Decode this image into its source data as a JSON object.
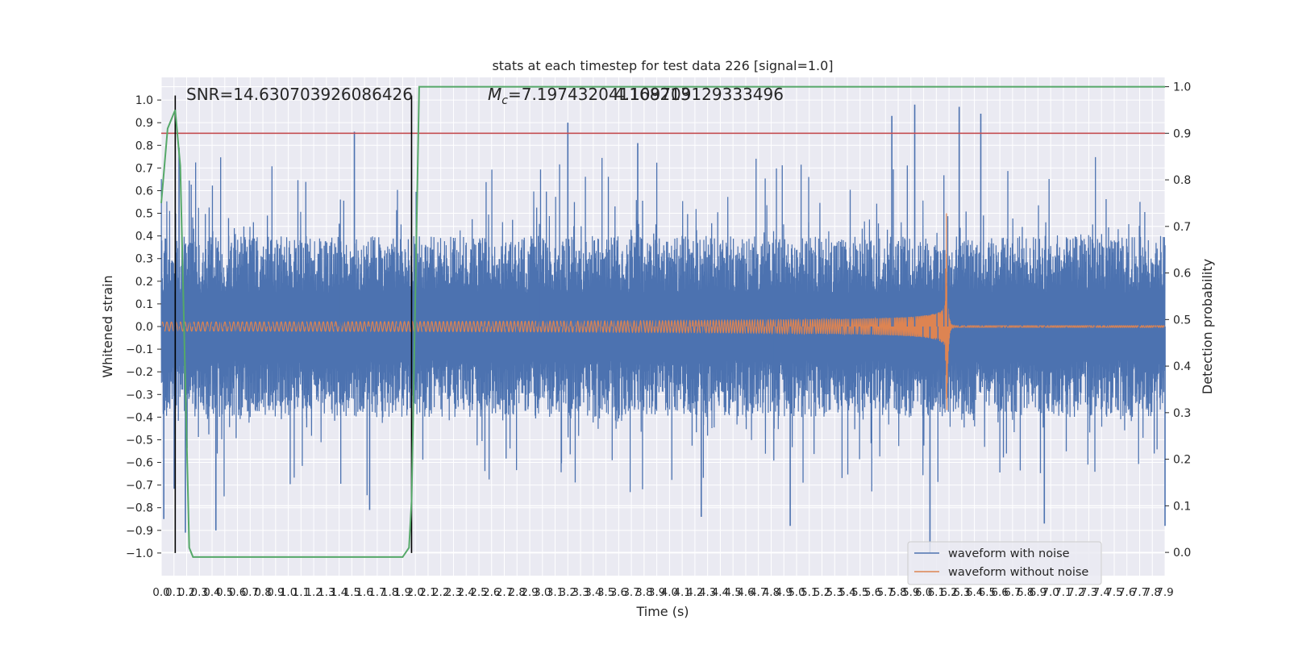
{
  "chart_data": {
    "type": "line",
    "title": "stats at each timestep for test data 226 [signal=1.0]",
    "xlabel": "Time (s)",
    "ylabel": "Whitened strain",
    "ylabel_right": "Detection probability",
    "xlim": [
      0.0,
      7.9
    ],
    "ylim": [
      -1.1,
      1.1
    ],
    "ylim_right": [
      -0.05,
      1.02
    ],
    "x_tick_step": 0.1,
    "y_ticks": [
      -1.0,
      -0.9,
      -0.8,
      -0.7,
      -0.6,
      -0.5,
      -0.4,
      -0.3,
      -0.2,
      -0.1,
      0.0,
      0.1,
      0.2,
      0.3,
      0.4,
      0.5,
      0.6,
      0.7,
      0.8,
      0.9,
      1.0
    ],
    "y_ticks_right": [
      0.0,
      0.1,
      0.2,
      0.3,
      0.4,
      0.5,
      0.6,
      0.7,
      0.8,
      0.9,
      1.0
    ],
    "grid": true,
    "legend_position": "lower-right",
    "annotations": {
      "snr": "SNR=14.630703926086426",
      "mc_prefix": "M",
      "mc_sub": "c",
      "mc_value": "=7.197432041168213",
      "overlap": "4.109709129333496"
    },
    "threshold": {
      "value": 0.9,
      "axis": "right",
      "color": "#c44e52"
    },
    "vertical_markers": [
      0.11,
      1.97
    ],
    "series": [
      {
        "name": "waveform with noise",
        "color": "#4c72b0",
        "axis": "left",
        "description": "whitened noisy strain, dense oscillation roughly within -0.4..0.4 with spikes to about -1.0..1.0"
      },
      {
        "name": "waveform without noise",
        "color": "#dd8452",
        "axis": "left",
        "description": "clean chirp: amplitude grows from about 0.02 to about 0.5 at merger near 6.2 s, then ringdown to ~0"
      },
      {
        "name": "detection probability",
        "color": "#55a868",
        "axis": "right",
        "x": [
          0.0,
          0.05,
          0.11,
          0.15,
          0.22,
          0.25,
          0.3,
          0.6,
          1.0,
          1.5,
          1.6,
          1.9,
          1.95,
          1.97,
          2.03,
          2.1,
          2.5,
          4.0,
          6.0,
          7.9
        ],
        "y": [
          0.75,
          0.91,
          0.95,
          0.83,
          0.01,
          -0.01,
          -0.01,
          -0.01,
          -0.01,
          -0.01,
          -0.01,
          -0.01,
          0.01,
          0.11,
          1.0,
          1.0,
          1.0,
          1.0,
          1.0,
          1.0
        ]
      }
    ],
    "clean_chirp": {
      "merger_time": 6.18,
      "peak_amplitude": 0.5,
      "trough_amplitude": -0.32,
      "start_amplitude": 0.02
    },
    "noise_spikes": [
      {
        "x": 0.02,
        "y": -0.85
      },
      {
        "x": 0.14,
        "y": 0.79
      },
      {
        "x": 0.19,
        "y": -0.91
      },
      {
        "x": 0.43,
        "y": -0.9
      },
      {
        "x": 1.52,
        "y": 0.86
      },
      {
        "x": 1.64,
        "y": -0.81
      },
      {
        "x": 3.2,
        "y": 0.9
      },
      {
        "x": 3.75,
        "y": 0.81
      },
      {
        "x": 4.25,
        "y": -0.84
      },
      {
        "x": 4.95,
        "y": -0.88
      },
      {
        "x": 5.75,
        "y": 0.93
      },
      {
        "x": 5.93,
        "y": 0.98
      },
      {
        "x": 6.05,
        "y": -1.0
      },
      {
        "x": 6.28,
        "y": 0.97
      },
      {
        "x": 6.45,
        "y": 0.94
      },
      {
        "x": 6.95,
        "y": -0.87
      },
      {
        "x": 7.9,
        "y": -0.88
      }
    ],
    "legend": [
      {
        "label": "waveform with noise",
        "color": "#4c72b0"
      },
      {
        "label": "waveform without noise",
        "color": "#dd8452"
      }
    ]
  }
}
